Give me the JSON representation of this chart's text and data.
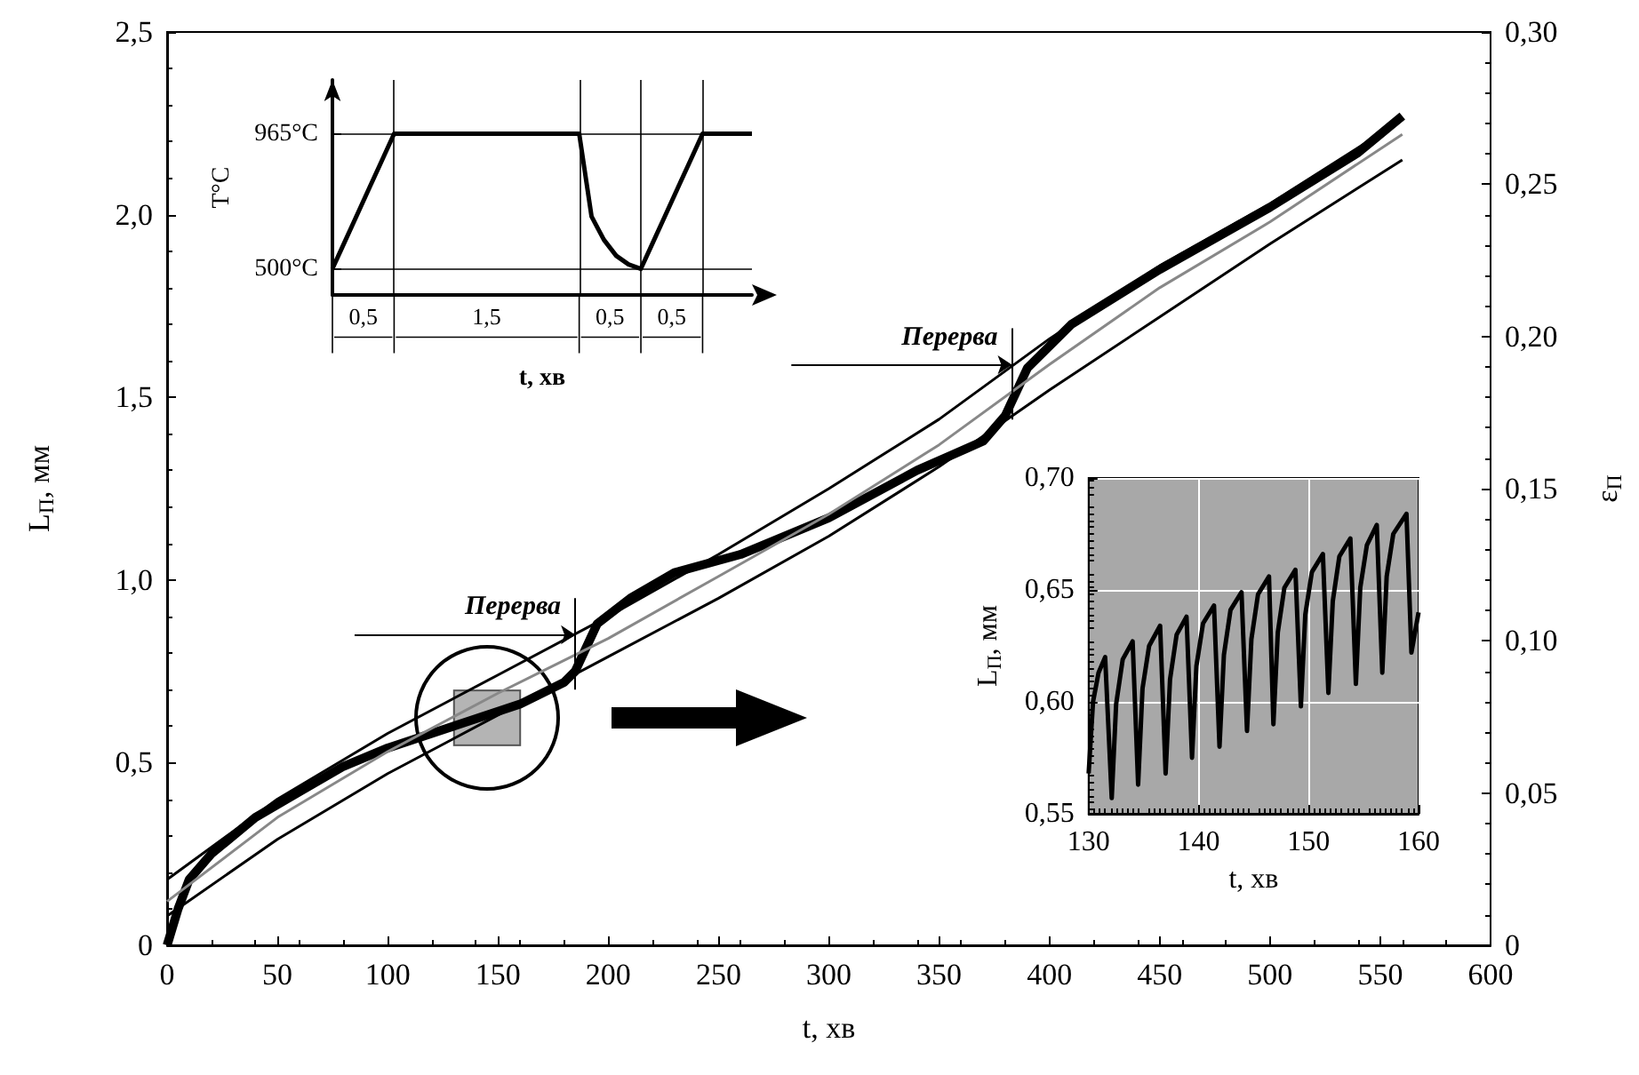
{
  "chart_data": [
    {
      "type": "line",
      "xlabel": "t, хв",
      "ylabel": "L$_{П}$, мм",
      "y2label": "ε$_{П}$",
      "xlim": [
        0,
        600
      ],
      "xticks": [
        0,
        50,
        100,
        150,
        200,
        250,
        300,
        350,
        400,
        450,
        500,
        550,
        600
      ],
      "ylim": [
        0,
        2.5
      ],
      "yticks": [
        0,
        {
          "value": 0.5,
          "label": "0,5"
        },
        {
          "value": 1,
          "label": "1,0"
        },
        {
          "value": 1.5,
          "label": "1,5"
        },
        {
          "value": 2,
          "label": "2,0"
        },
        {
          "value": 2.5,
          "label": "2,5"
        }
      ],
      "y2lim": [
        0,
        0.3
      ],
      "y2ticks": [
        0,
        {
          "value": 0.05,
          "label": "0,05"
        },
        {
          "value": 0.1,
          "label": "0,10"
        },
        {
          "value": 0.15,
          "label": "0,15"
        },
        {
          "value": 0.2,
          "label": "0,20"
        },
        {
          "value": 0.25,
          "label": "0,25"
        },
        {
          "value": 0.3,
          "label": "0,30"
        }
      ],
      "marker": "none",
      "grid": false,
      "series": [
        {
          "color": "#000000",
          "x": [
            0,
            5,
            10,
            20,
            40,
            60,
            80,
            100,
            130,
            160,
            180,
            185,
            195,
            210,
            230,
            260,
            300,
            340,
            370,
            380,
            390,
            410,
            450,
            500,
            540,
            560
          ],
          "values": [
            0,
            0.1,
            0.18,
            0.25,
            0.35,
            0.42,
            0.49,
            0.54,
            0.6,
            0.66,
            0.72,
            0.75,
            0.88,
            0.95,
            1.02,
            1.07,
            1.17,
            1.3,
            1.38,
            1.45,
            1.58,
            1.7,
            1.85,
            2.02,
            2.17,
            2.27
          ]
        },
        {
          "color": "#000000",
          "x": [
            0,
            50,
            100,
            150,
            200,
            250,
            300,
            350,
            400,
            450,
            500,
            560
          ],
          "values": [
            0.18,
            0.4,
            0.58,
            0.74,
            0.9,
            1.07,
            1.25,
            1.44,
            1.66,
            1.86,
            2.03,
            2.26
          ]
        },
        {
          "color": "#000000",
          "x": [
            0,
            50,
            100,
            150,
            200,
            250,
            300,
            350,
            400,
            450,
            500,
            560
          ],
          "values": [
            0.08,
            0.29,
            0.47,
            0.63,
            0.79,
            0.95,
            1.12,
            1.31,
            1.52,
            1.72,
            1.92,
            2.15
          ]
        },
        {
          "color": "#888888",
          "x": [
            0,
            50,
            100,
            150,
            200,
            250,
            300,
            350,
            400,
            450,
            500,
            560
          ],
          "values": [
            0.12,
            0.35,
            0.53,
            0.69,
            0.84,
            1.01,
            1.18,
            1.37,
            1.59,
            1.8,
            1.98,
            2.22
          ]
        }
      ],
      "ref_lines": [
        {
          "axis": "x",
          "value": 185,
          "label": "Перерва"
        },
        {
          "axis": "x",
          "value": 383,
          "label": "Перерва"
        }
      ]
    },
    {
      "type": "line",
      "xlabel": "t, хв",
      "ylabel": "L$_{П}$, мм",
      "xlim": [
        130,
        160
      ],
      "xticks": [
        130,
        140,
        150,
        160
      ],
      "ylim": [
        0.55,
        0.7
      ],
      "yticks": [
        {
          "value": 0.55,
          "label": "0,55"
        },
        {
          "value": 0.6,
          "label": "0,60"
        },
        {
          "value": 0.65,
          "label": "0,65"
        },
        {
          "value": 0.7,
          "label": "0,70"
        }
      ],
      "grid": true,
      "marker": "none",
      "series": [
        {
          "color": "#000000",
          "x": [
            130,
            130.4,
            130.9,
            131.5,
            132.1,
            132.5,
            133.1,
            134.0,
            134.5,
            134.9,
            135.5,
            136.5,
            137.0,
            137.4,
            138.0,
            138.9,
            139.4,
            139.8,
            140.4,
            141.4,
            141.9,
            142.3,
            142.9,
            143.9,
            144.4,
            144.8,
            145.4,
            146.4,
            146.8,
            147.2,
            147.8,
            148.8,
            149.3,
            149.7,
            150.3,
            151.3,
            151.8,
            152.2,
            152.8,
            153.8,
            154.3,
            154.7,
            155.3,
            156.2,
            156.7,
            157.1,
            157.7,
            158.9,
            159.35,
            160
          ],
          "values": [
            0.568,
            0.6,
            0.613,
            0.62,
            0.557,
            0.599,
            0.619,
            0.627,
            0.563,
            0.606,
            0.625,
            0.634,
            0.568,
            0.61,
            0.63,
            0.638,
            0.575,
            0.616,
            0.635,
            0.643,
            0.58,
            0.621,
            0.641,
            0.649,
            0.587,
            0.628,
            0.648,
            0.656,
            0.59,
            0.631,
            0.651,
            0.659,
            0.598,
            0.639,
            0.658,
            0.666,
            0.604,
            0.645,
            0.665,
            0.673,
            0.608,
            0.651,
            0.67,
            0.679,
            0.613,
            0.656,
            0.675,
            0.684,
            0.622,
            0.64
          ]
        }
      ]
    },
    {
      "type": "line",
      "xlabel": "t, хв",
      "ylabel": "T°C",
      "categories": [
        null,
        null,
        null,
        null,
        null,
        null,
        null,
        null,
        null,
        null,
        null,
        null,
        null,
        null,
        null,
        null,
        null,
        null,
        null,
        null,
        null,
        null,
        null,
        null,
        null,
        null,
        null,
        null,
        null,
        null,
        null,
        null,
        null,
        null,
        null
      ],
      "ylim": [
        410,
        1150
      ],
      "yticks": [
        {
          "value": 500,
          "label": "500°C"
        },
        {
          "value": 965,
          "label": "965°C"
        }
      ],
      "grid": true,
      "marker": "none",
      "series": [
        {
          "color": "#000000",
          "values": [
            500,
            593,
            686,
            779,
            872,
            965,
            965,
            965,
            965,
            965,
            965,
            965,
            965,
            965,
            965,
            965,
            965,
            965,
            965,
            965,
            965,
            680,
            600,
            545,
            515,
            500,
            593,
            686,
            779,
            872,
            965,
            965,
            965,
            965,
            965
          ]
        }
      ],
      "annotations": [
        "0,5",
        "1,5",
        "0,5",
        "0,5"
      ]
    }
  ]
}
